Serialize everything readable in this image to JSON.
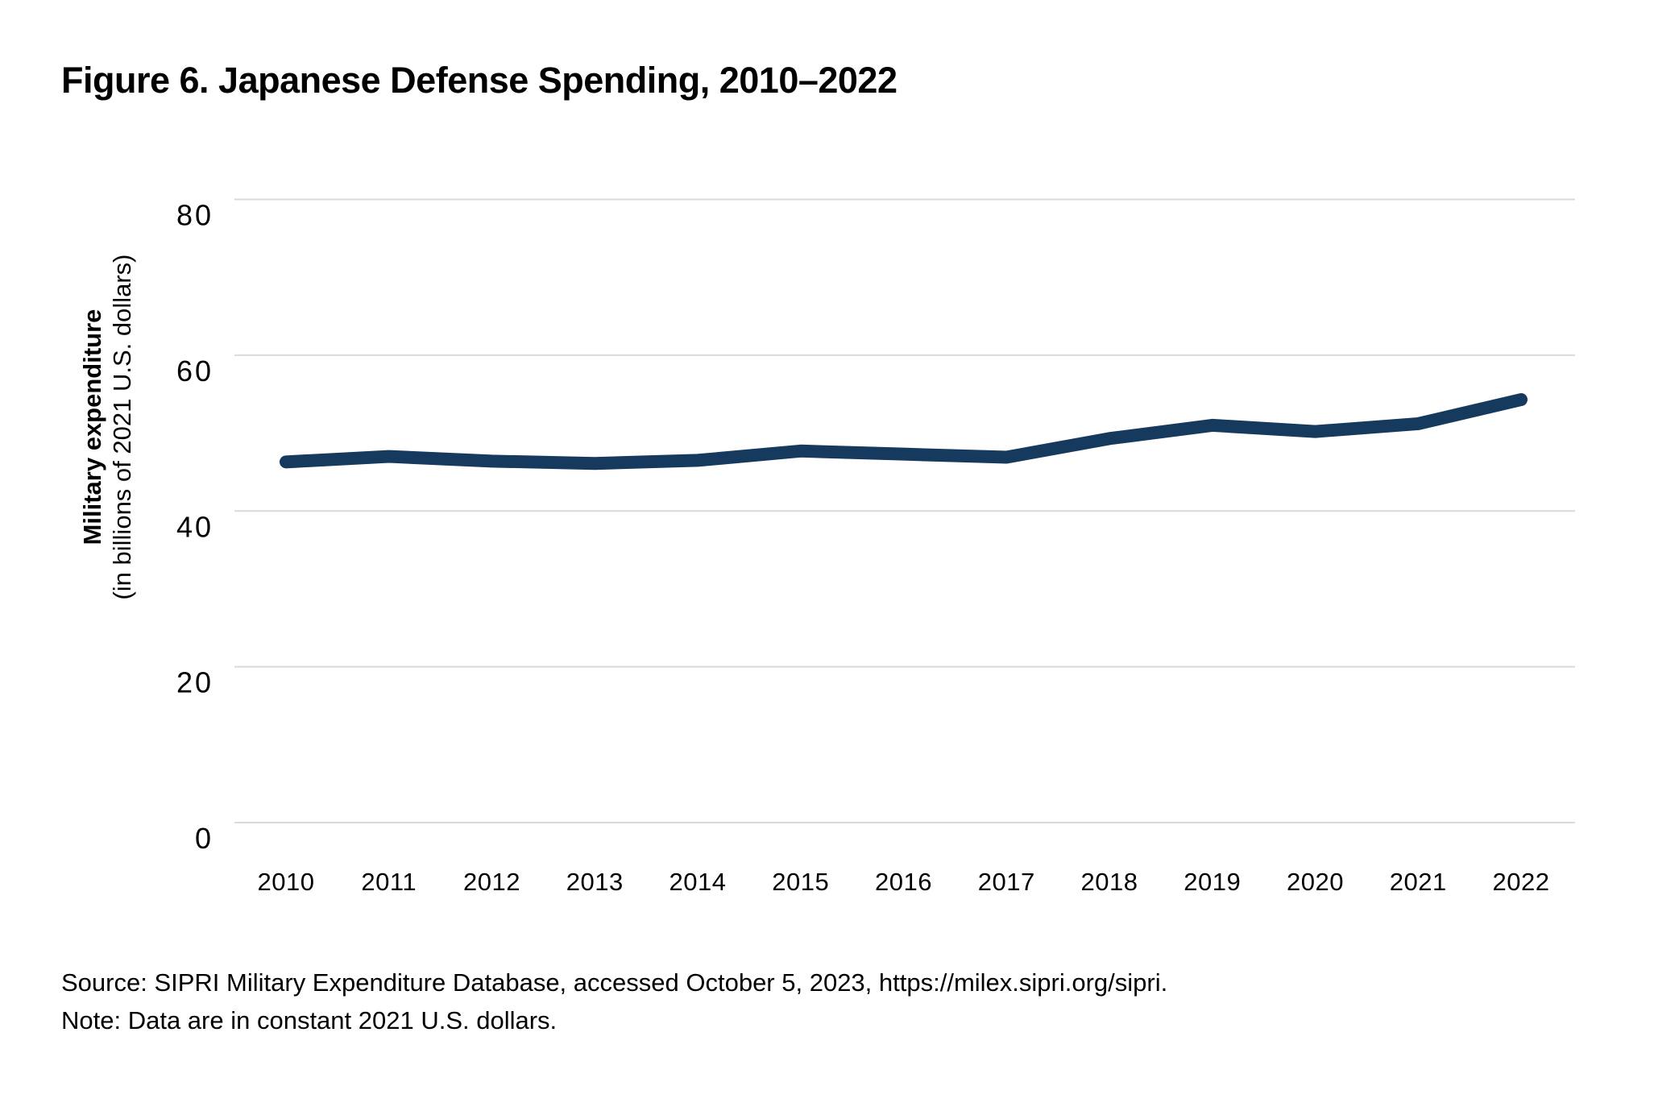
{
  "figure": {
    "title": "Figure 6. Japanese Defense Spending, 2010–2022",
    "source_line": "Source: SIPRI Military Expenditure Database, accessed October 5, 2023, https://milex.sipri.org/sipri.",
    "note_line": "Note: Data are in constant 2021 U.S. dollars."
  },
  "chart_data": {
    "type": "line",
    "title": "Figure 6. Japanese Defense Spending, 2010–2022",
    "ylabel": "Military expenditure",
    "ylabel_sub": "(in billions of 2021 U.S. dollars)",
    "xlabel": "",
    "categories": [
      2010,
      2011,
      2012,
      2013,
      2014,
      2015,
      2016,
      2017,
      2018,
      2019,
      2020,
      2021,
      2022
    ],
    "series": [
      {
        "name": "Japanese military expenditure (billions of 2021 U.S. dollars)",
        "values": [
          46.3,
          47.0,
          46.4,
          46.1,
          46.5,
          47.7,
          47.3,
          46.9,
          49.3,
          51.0,
          50.2,
          51.2,
          54.3
        ]
      }
    ],
    "ylim": [
      0,
      80
    ],
    "yticks": [
      0,
      20,
      40,
      60,
      80
    ],
    "grid": "horizontal",
    "legend_position": "none",
    "line_color": "#16395E",
    "grid_color": "#D9D9D9",
    "text_color": "#000000"
  }
}
